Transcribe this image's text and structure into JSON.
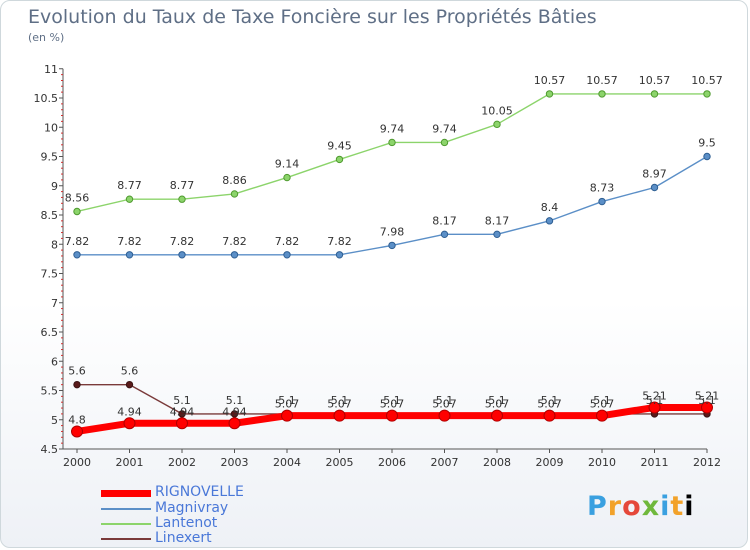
{
  "title": "Evolution du Taux de Taxe Foncière sur les Propriétés Bâties",
  "subtitle": "(en %)",
  "logo": [
    "P",
    "r",
    "o",
    "x",
    "i",
    "t",
    "i"
  ],
  "chart_data": {
    "type": "line",
    "x": [
      "2000",
      "2001",
      "2002",
      "2003",
      "2004",
      "2005",
      "2006",
      "2007",
      "2008",
      "2009",
      "2010",
      "2011",
      "2012"
    ],
    "ylim": [
      4.5,
      11
    ],
    "yticks": [
      "4.5",
      "5",
      "5.5",
      "6",
      "6.5",
      "7",
      "7.5",
      "8",
      "8.5",
      "9",
      "9.5",
      "10",
      "10.5",
      "11"
    ],
    "grid": false,
    "legend_position": "bottom-left",
    "series": [
      {
        "name": "RIGNOVELLE",
        "color": "#ff0000",
        "values": [
          4.8,
          4.94,
          4.94,
          4.94,
          5.07,
          5.07,
          5.07,
          5.07,
          5.07,
          5.07,
          5.07,
          5.21,
          5.21
        ],
        "labels": [
          "4.8",
          "4.94",
          "4.94",
          "4.94",
          "5.07",
          "5.07",
          "5.07",
          "5.07",
          "5.07",
          "5.07",
          "5.07",
          "5.21",
          "5.21"
        ]
      },
      {
        "name": "Magnivray",
        "color": "#5b8fc7",
        "values": [
          7.82,
          7.82,
          7.82,
          7.82,
          7.82,
          7.82,
          7.98,
          8.17,
          8.17,
          8.4,
          8.73,
          8.97,
          9.5
        ],
        "labels": [
          "7.82",
          "7.82",
          "7.82",
          "7.82",
          "7.82",
          "7.82",
          "7.98",
          "8.17",
          "8.17",
          "8.4",
          "8.73",
          "8.97",
          "9.5"
        ]
      },
      {
        "name": "Lantenot",
        "color": "#8cd46b",
        "values": [
          8.56,
          8.77,
          8.77,
          8.86,
          9.14,
          9.45,
          9.74,
          9.74,
          10.05,
          10.57,
          10.57,
          10.57,
          10.57
        ],
        "labels": [
          "8.56",
          "8.77",
          "8.77",
          "8.86",
          "9.14",
          "9.45",
          "9.74",
          "9.74",
          "10.05",
          "10.57",
          "10.57",
          "10.57",
          "10.57"
        ]
      },
      {
        "name": "Linexert",
        "color": "#7a3a3a",
        "values": [
          5.6,
          5.6,
          5.1,
          5.1,
          5.1,
          5.1,
          5.1,
          5.1,
          5.1,
          5.1,
          5.1,
          5.1,
          5.1
        ],
        "labels": [
          "5.6",
          "5.6",
          "5.1",
          "5.1",
          "5.1",
          "5.1",
          "5.1",
          "5.1",
          "5.1",
          "5.1",
          "5.1",
          "5.1",
          "5.1"
        ]
      }
    ]
  }
}
